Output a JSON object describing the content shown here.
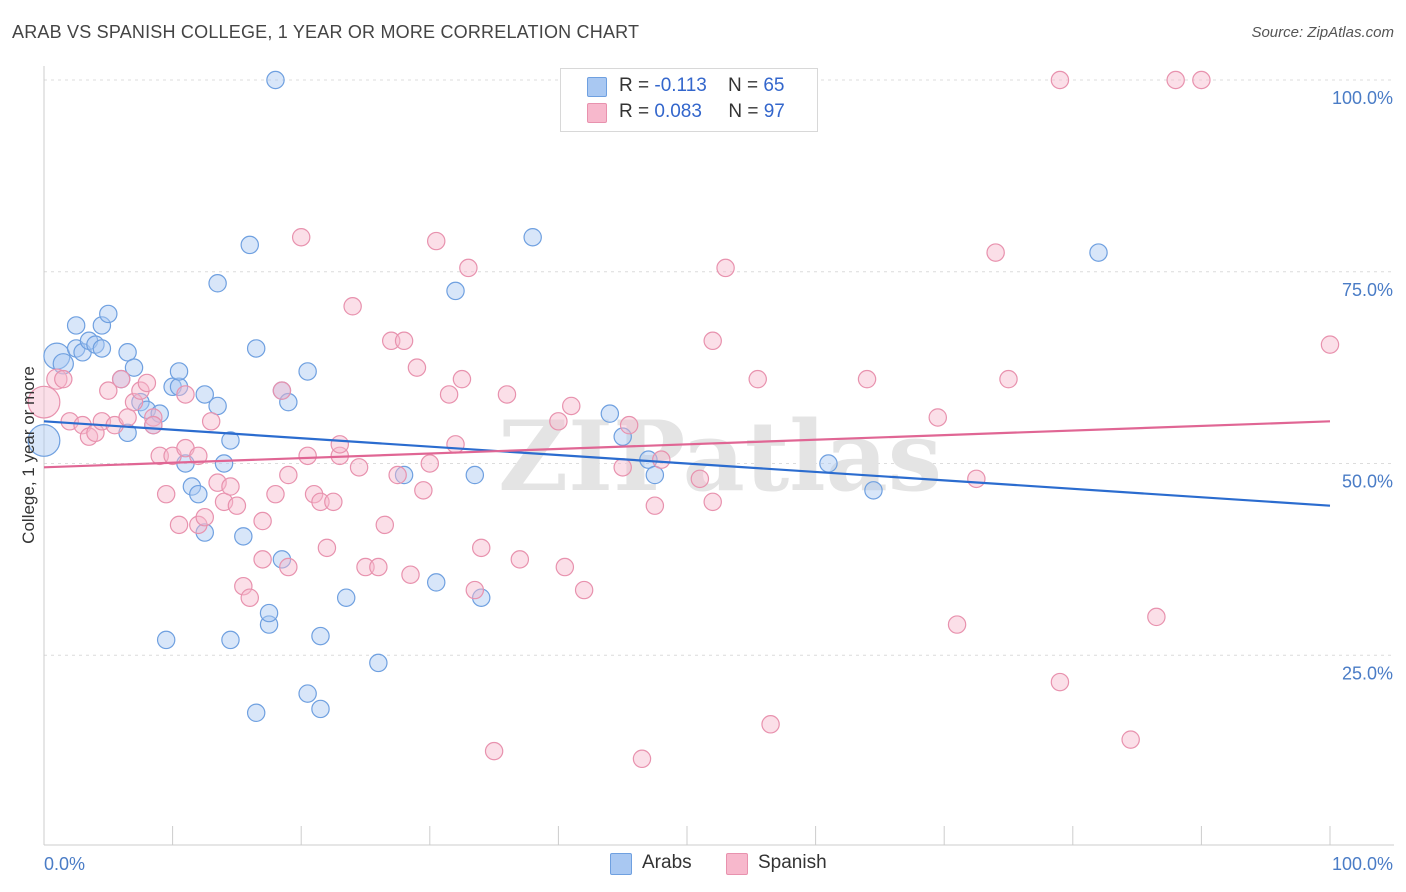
{
  "title": "ARAB VS SPANISH COLLEGE, 1 YEAR OR MORE CORRELATION CHART",
  "source": "Source: ZipAtlas.com",
  "watermark": "ZIPatlas",
  "legend": {
    "rows": [
      {
        "r_label": "R = ",
        "r_value": "-0.113",
        "n_label": "N = ",
        "n_value": "65",
        "color": "#a9c8f2"
      },
      {
        "r_label": "R = ",
        "r_value": "0.083",
        "n_label": "N = ",
        "n_value": "97",
        "color": "#f7b8cc"
      }
    ]
  },
  "bottom_legend": [
    {
      "label": "Arabs",
      "color": "#a9c8f2"
    },
    {
      "label": "Spanish",
      "color": "#f7b8cc"
    }
  ],
  "chart_data": {
    "type": "scatter",
    "title": "ARAB VS SPANISH COLLEGE, 1 YEAR OR MORE CORRELATION CHART",
    "ylabel": "College, 1 year or more",
    "xlim": [
      0,
      100
    ],
    "ylim": [
      0,
      100
    ],
    "x_tick_labels": [
      "0.0%",
      "100.0%"
    ],
    "y_tick_labels": [
      "25.0%",
      "50.0%",
      "75.0%",
      "100.0%"
    ],
    "y_ticks": [
      25,
      50,
      75,
      100
    ],
    "grid": true,
    "series": [
      {
        "name": "Arabs",
        "color": "#6fa0e0",
        "fill": "#a9c8f2",
        "trend": {
          "x": [
            0,
            100
          ],
          "y": [
            55.5,
            44.5
          ],
          "color": "#2b6ccf"
        },
        "points": [
          [
            0,
            53,
            22
          ],
          [
            1,
            64,
            18
          ],
          [
            1.5,
            63,
            14
          ],
          [
            2.5,
            65,
            12
          ],
          [
            2.5,
            68,
            12
          ],
          [
            3,
            64.5,
            12
          ],
          [
            3.5,
            66,
            12
          ],
          [
            4,
            65.5,
            12
          ],
          [
            4.5,
            65,
            12
          ],
          [
            4.5,
            68,
            12
          ],
          [
            5,
            69.5,
            12
          ],
          [
            6,
            61,
            12
          ],
          [
            6.5,
            54,
            12
          ],
          [
            6.5,
            64.5,
            12
          ],
          [
            7,
            62.5,
            12
          ],
          [
            7.5,
            58,
            12
          ],
          [
            8,
            57,
            12
          ],
          [
            8.5,
            55,
            12
          ],
          [
            9,
            56.5,
            12
          ],
          [
            9.5,
            27,
            12
          ],
          [
            10,
            60,
            12
          ],
          [
            10.5,
            60,
            12
          ],
          [
            10.5,
            62,
            12
          ],
          [
            11,
            50,
            12
          ],
          [
            11.5,
            47,
            12
          ],
          [
            12,
            46,
            12
          ],
          [
            12.5,
            59,
            12
          ],
          [
            12.5,
            41,
            12
          ],
          [
            13.5,
            57.5,
            12
          ],
          [
            13.5,
            73.5,
            12
          ],
          [
            14,
            50,
            12
          ],
          [
            14.5,
            27,
            12
          ],
          [
            14.5,
            53,
            12
          ],
          [
            15.5,
            40.5,
            12
          ],
          [
            16,
            78.5,
            12
          ],
          [
            16.5,
            65,
            12
          ],
          [
            16.5,
            17.5,
            12
          ],
          [
            17.5,
            29,
            12
          ],
          [
            17.5,
            30.5,
            12
          ],
          [
            18,
            100,
            12
          ],
          [
            18.5,
            59.5,
            12
          ],
          [
            18.5,
            37.5,
            12
          ],
          [
            19,
            58,
            12
          ],
          [
            20.5,
            62,
            12
          ],
          [
            20.5,
            20,
            12
          ],
          [
            21.5,
            27.5,
            12
          ],
          [
            21.5,
            18,
            12
          ],
          [
            23.5,
            32.5,
            12
          ],
          [
            26,
            24,
            12
          ],
          [
            28,
            48.5,
            12
          ],
          [
            30.5,
            34.5,
            12
          ],
          [
            32,
            72.5,
            12
          ],
          [
            33.5,
            48.5,
            12
          ],
          [
            34,
            32.5,
            12
          ],
          [
            38,
            79.5,
            12
          ],
          [
            44,
            56.5,
            12
          ],
          [
            45,
            53.5,
            12
          ],
          [
            47,
            50.5,
            12
          ],
          [
            47.5,
            48.5,
            12
          ],
          [
            61,
            50,
            12
          ],
          [
            64.5,
            46.5,
            12
          ],
          [
            82,
            77.5,
            12
          ]
        ]
      },
      {
        "name": "Spanish",
        "color": "#e892ae",
        "fill": "#f7b8cc",
        "trend": {
          "x": [
            0,
            100
          ],
          "y": [
            49.5,
            55.5
          ],
          "color": "#e06694"
        },
        "points": [
          [
            0,
            58,
            22
          ],
          [
            1,
            61,
            14
          ],
          [
            1.5,
            61,
            12
          ],
          [
            2,
            55.5,
            12
          ],
          [
            3,
            55,
            12
          ],
          [
            3.5,
            53.5,
            12
          ],
          [
            4,
            54,
            12
          ],
          [
            4.5,
            55.5,
            12
          ],
          [
            5,
            59.5,
            12
          ],
          [
            5.5,
            55,
            12
          ],
          [
            6,
            61,
            12
          ],
          [
            6.5,
            56,
            12
          ],
          [
            7,
            58,
            12
          ],
          [
            7.5,
            59.5,
            12
          ],
          [
            8,
            60.5,
            12
          ],
          [
            8.5,
            56,
            12
          ],
          [
            8.5,
            55,
            12
          ],
          [
            9,
            51,
            12
          ],
          [
            9.5,
            46,
            12
          ],
          [
            10,
            51,
            12
          ],
          [
            10.5,
            42,
            12
          ],
          [
            11,
            59,
            12
          ],
          [
            11,
            52,
            12
          ],
          [
            12,
            51,
            12
          ],
          [
            12,
            42,
            12
          ],
          [
            12.5,
            43,
            12
          ],
          [
            13,
            55.5,
            12
          ],
          [
            13.5,
            47.5,
            12
          ],
          [
            14,
            45,
            12
          ],
          [
            14.5,
            47,
            12
          ],
          [
            15,
            44.5,
            12
          ],
          [
            15.5,
            34,
            12
          ],
          [
            16,
            32.5,
            12
          ],
          [
            17,
            42.5,
            12
          ],
          [
            17,
            37.5,
            12
          ],
          [
            18,
            46,
            12
          ],
          [
            18.5,
            59.5,
            12
          ],
          [
            19,
            48.5,
            12
          ],
          [
            19,
            36.5,
            12
          ],
          [
            20,
            79.5,
            12
          ],
          [
            20.5,
            51,
            12
          ],
          [
            21,
            46,
            12
          ],
          [
            21.5,
            45,
            12
          ],
          [
            22,
            39,
            12
          ],
          [
            22.5,
            45,
            12
          ],
          [
            23,
            51,
            12
          ],
          [
            23,
            52.5,
            12
          ],
          [
            24,
            70.5,
            12
          ],
          [
            24.5,
            49.5,
            12
          ],
          [
            25,
            36.5,
            12
          ],
          [
            26,
            36.5,
            12
          ],
          [
            26.5,
            42,
            12
          ],
          [
            27,
            66,
            12
          ],
          [
            27.5,
            48.5,
            12
          ],
          [
            28,
            66,
            12
          ],
          [
            28.5,
            35.5,
            12
          ],
          [
            29,
            62.5,
            12
          ],
          [
            29.5,
            46.5,
            12
          ],
          [
            30,
            50,
            12
          ],
          [
            30.5,
            79,
            12
          ],
          [
            31.5,
            59,
            12
          ],
          [
            32,
            52.5,
            12
          ],
          [
            32.5,
            61,
            12
          ],
          [
            33,
            75.5,
            12
          ],
          [
            33.5,
            33.5,
            12
          ],
          [
            34,
            39,
            12
          ],
          [
            35,
            12.5,
            12
          ],
          [
            36,
            59,
            12
          ],
          [
            37,
            37.5,
            12
          ],
          [
            40,
            55.5,
            12
          ],
          [
            40.5,
            36.5,
            12
          ],
          [
            41,
            57.5,
            12
          ],
          [
            42,
            33.5,
            12
          ],
          [
            45,
            49.5,
            12
          ],
          [
            45.5,
            55,
            12
          ],
          [
            46.5,
            11.5,
            12
          ],
          [
            47.5,
            44.5,
            12
          ],
          [
            48,
            50.5,
            12
          ],
          [
            51,
            48,
            12
          ],
          [
            52,
            45,
            12
          ],
          [
            52,
            66,
            12
          ],
          [
            53,
            75.5,
            12
          ],
          [
            55.5,
            61,
            12
          ],
          [
            56.5,
            16,
            12
          ],
          [
            64,
            61,
            12
          ],
          [
            69.5,
            56,
            12
          ],
          [
            71,
            29,
            12
          ],
          [
            72.5,
            48,
            12
          ],
          [
            74,
            77.5,
            12
          ],
          [
            75,
            61,
            12
          ],
          [
            79,
            21.5,
            12
          ],
          [
            79,
            100,
            12
          ],
          [
            84.5,
            14,
            12
          ],
          [
            86.5,
            30,
            12
          ],
          [
            88,
            100,
            12
          ],
          [
            90,
            100,
            12
          ],
          [
            100,
            65.5,
            12
          ]
        ]
      }
    ]
  }
}
